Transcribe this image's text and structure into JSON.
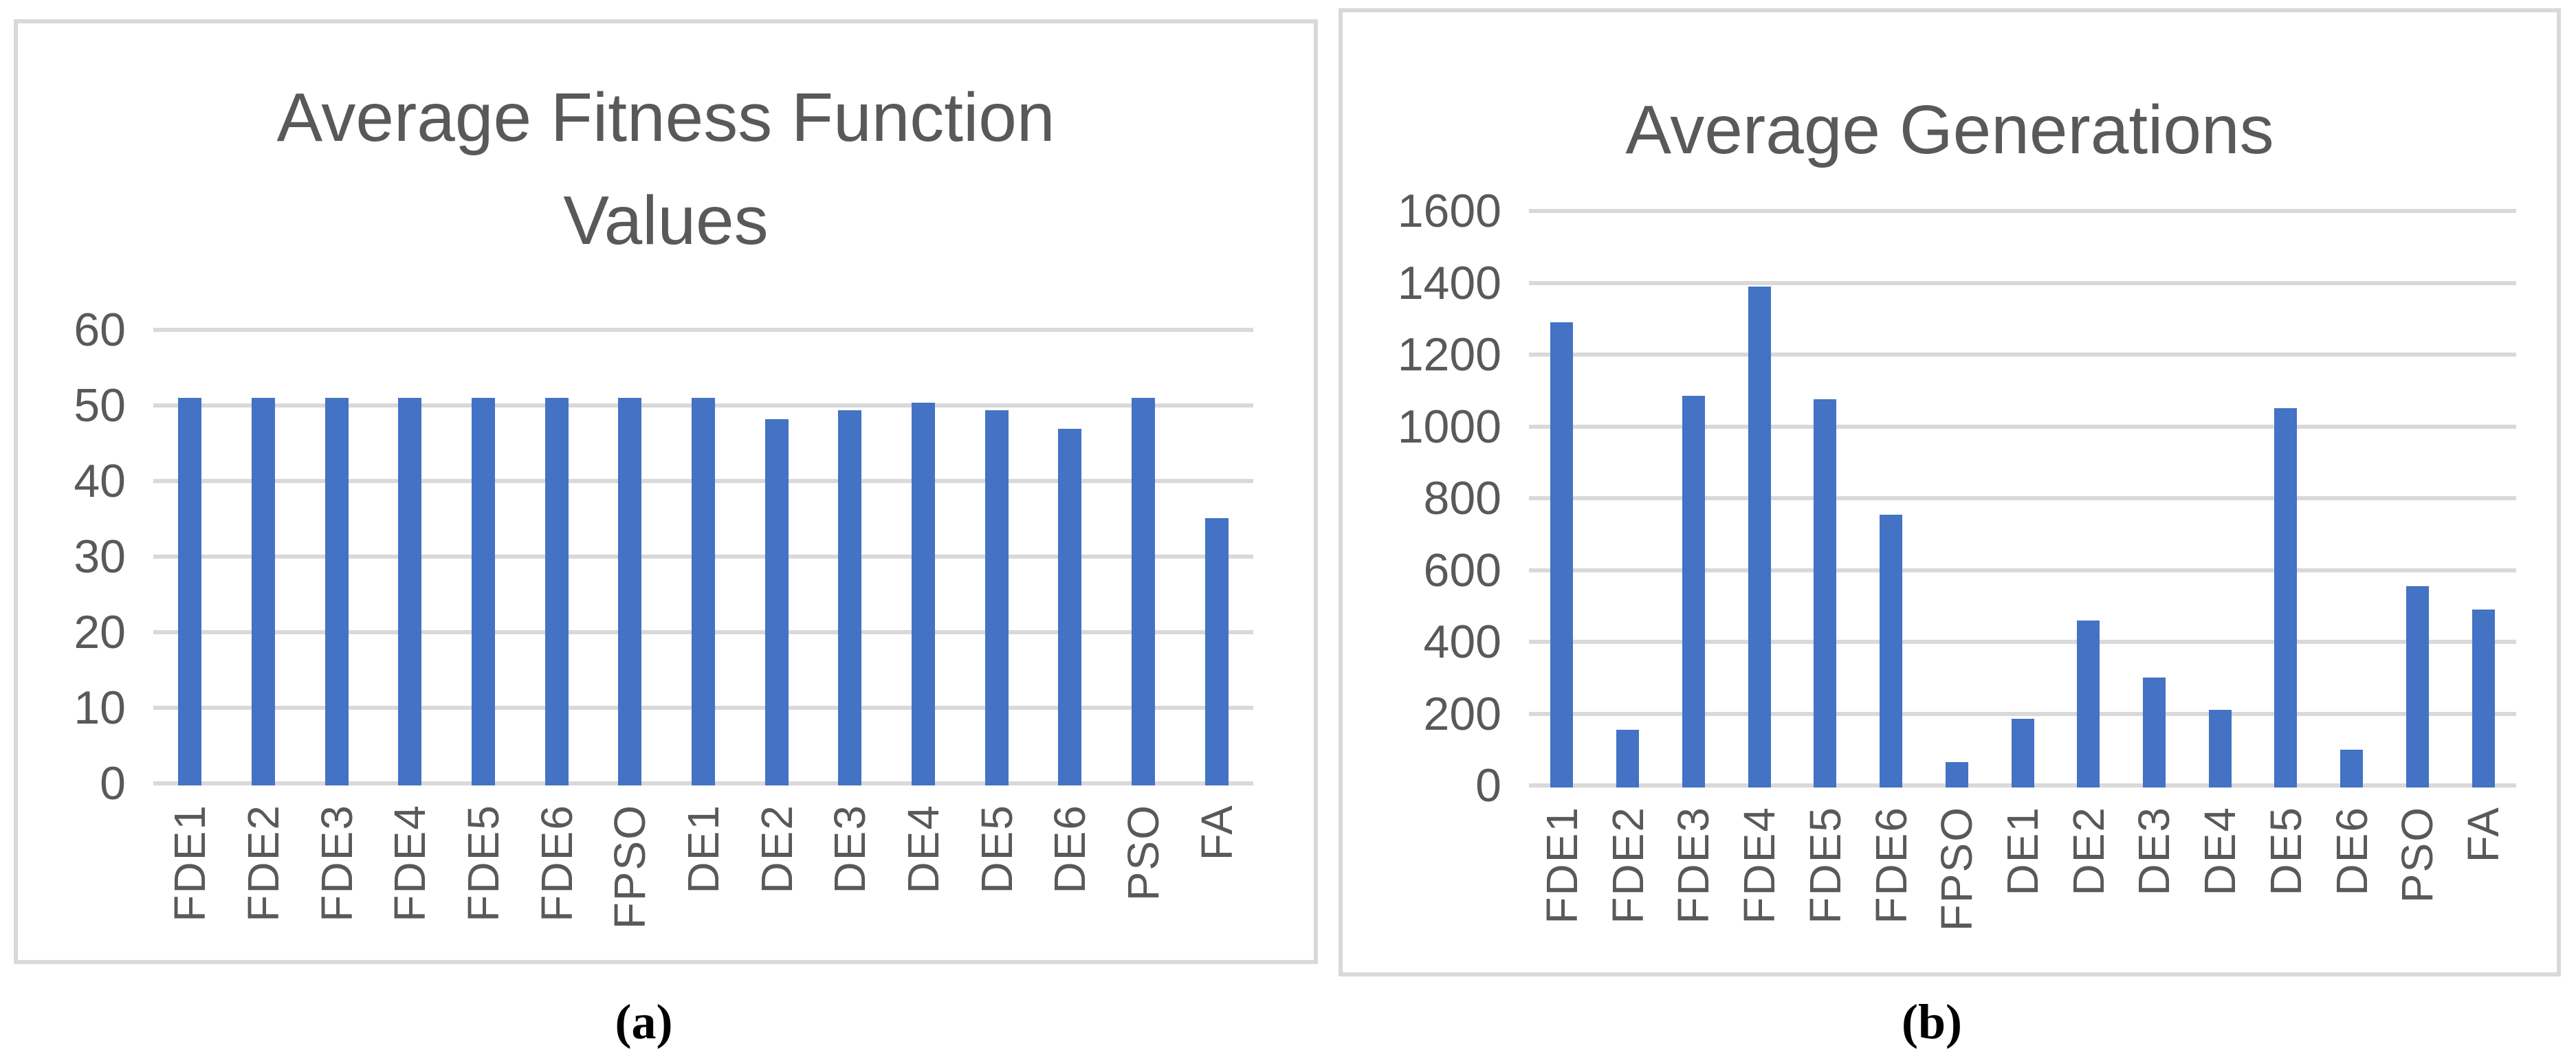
{
  "figure": {
    "background": "#ffffff",
    "captions": {
      "a": "(a)",
      "b": "(b)"
    }
  },
  "colors": {
    "bar": "#4472C4",
    "gridline": "#D9D9D9",
    "panel_border": "#D9D9D9",
    "axis_text": "#595959",
    "title_text": "#595959",
    "caption_text": "#000000"
  },
  "chart_data": [
    {
      "id": "fitness",
      "type": "bar",
      "title": "Average Fitness Function Values",
      "title_lines": [
        "Average Fitness Function",
        "Values"
      ],
      "caption": "(a)",
      "categories": [
        "FDE1",
        "FDE2",
        "FDE3",
        "FDE4",
        "FDE5",
        "FDE6",
        "FPSO",
        "DE1",
        "DE2",
        "DE3",
        "DE4",
        "DE5",
        "DE6",
        "PSO",
        "FA"
      ],
      "values": [
        51,
        51,
        51,
        51,
        51,
        51,
        51,
        51,
        48.2,
        49.4,
        50.4,
        49.4,
        46.9,
        51,
        35.1
      ],
      "xlabel": "",
      "ylabel": "",
      "ylim": [
        0,
        60
      ],
      "y_ticks": [
        0,
        10,
        20,
        30,
        40,
        50,
        60
      ],
      "grid": true,
      "legend": "none",
      "bar_color": "#4472C4"
    },
    {
      "id": "generations",
      "type": "bar",
      "title": "Average Generations",
      "title_lines": [
        "Average Generations"
      ],
      "caption": "(b)",
      "categories": [
        "FDE1",
        "FDE2",
        "FDE3",
        "FDE4",
        "FDE5",
        "FDE6",
        "FPSO",
        "DE1",
        "DE2",
        "DE3",
        "DE4",
        "DE5",
        "DE6",
        "PSO",
        "FA"
      ],
      "values": [
        1290,
        155,
        1085,
        1390,
        1075,
        755,
        65,
        185,
        460,
        300,
        210,
        1050,
        100,
        555,
        490
      ],
      "xlabel": "",
      "ylabel": "",
      "ylim": [
        0,
        1600
      ],
      "y_ticks": [
        0,
        200,
        400,
        600,
        800,
        1000,
        1200,
        1400,
        1600
      ],
      "grid": true,
      "legend": "none",
      "bar_color": "#4472C4"
    }
  ]
}
